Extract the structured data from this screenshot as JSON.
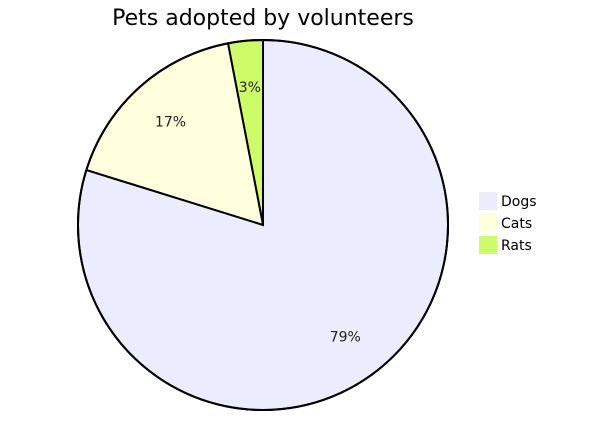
{
  "chart_data": {
    "type": "pie",
    "title": "Pets adopted by volunteers",
    "categories": [
      "Dogs",
      "Cats",
      "Rats"
    ],
    "values": [
      79,
      17,
      3
    ],
    "labels": [
      "79%",
      "17%",
      "3%"
    ],
    "colors": [
      "#ececff",
      "#ffffde",
      "#cdfc68"
    ],
    "stroke_color": "#000000",
    "legend_placement": "right",
    "start_angle_deg": 0,
    "direction": "clockwise"
  }
}
